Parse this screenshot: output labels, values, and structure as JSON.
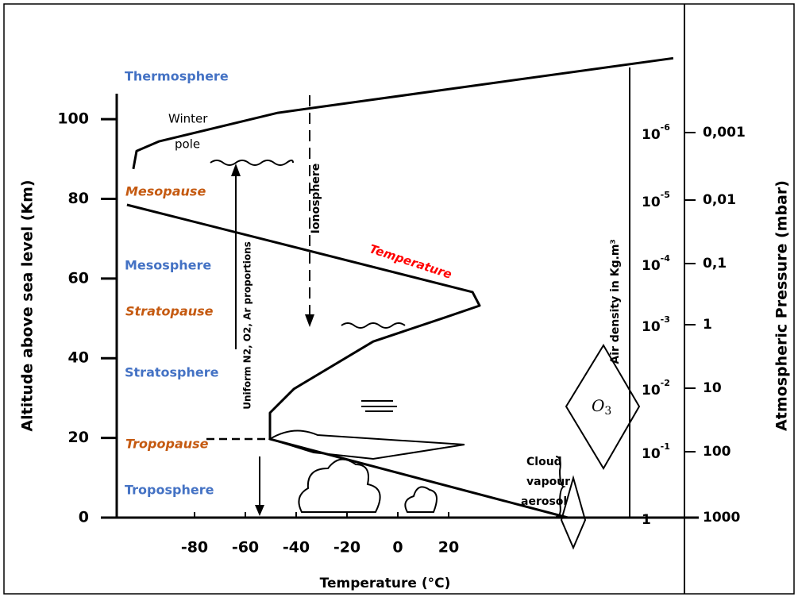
{
  "chart_data": {
    "type": "line",
    "y_label": "Altitude above sea level (Km)",
    "x_label": "Temperature (°C)",
    "y2_label": "Atmospheric Pressure (mbar)",
    "xlim": [
      -110,
      110
    ],
    "ylim": [
      0,
      106
    ],
    "xticks": [
      -80,
      -60,
      -40,
      -20,
      0,
      20
    ],
    "yticks": [
      0,
      20,
      40,
      60,
      80,
      100
    ],
    "series": [
      {
        "name": "Temperature",
        "color": "#000000",
        "x": [
          66.9,
          -50.3,
          -50.3,
          -40.9,
          -9.7,
          18.4,
          32.2,
          29.4,
          -106.6,
          null,
          -104.1,
          -102.8,
          -94.1,
          -47.2,
          -31.6,
          108.4
        ],
        "values": [
          0,
          19.7,
          26.3,
          32.3,
          44.2,
          50.2,
          53.2,
          56.6,
          78.5,
          null,
          87.5,
          92,
          94.4,
          101.6,
          103,
          115.3
        ]
      }
    ],
    "layers": [
      "Thermosphere",
      "Mesopause",
      "Mesosphere",
      "Stratopause",
      "Stratosphere",
      "Tropopause",
      "Troposphere"
    ],
    "air_density_label": "Air density in Kg.m³",
    "air_density_ticks": [
      {
        "base": "10",
        "exp": "-6"
      },
      {
        "base": "10",
        "exp": "-5"
      },
      {
        "base": "10",
        "exp": "-4"
      },
      {
        "base": "10",
        "exp": "-3"
      },
      {
        "base": "10",
        "exp": "-2"
      },
      {
        "base": "10",
        "exp": "-1"
      },
      {
        "base": "1"
      }
    ],
    "pressure_ticks": [
      "0,001",
      "0,01",
      "0,1",
      "1",
      "10",
      "100",
      "1000"
    ],
    "annotations": {
      "winter": "Winter",
      "pole": "pole",
      "ionosphere": "Ionosphere",
      "uniform": "Uniform N2, O2, Ar proportions",
      "cloud": "Cloud",
      "vapour": "vapour",
      "aerosol": "aerosol",
      "o3": {
        "base": "O",
        "sub": "3"
      }
    }
  }
}
